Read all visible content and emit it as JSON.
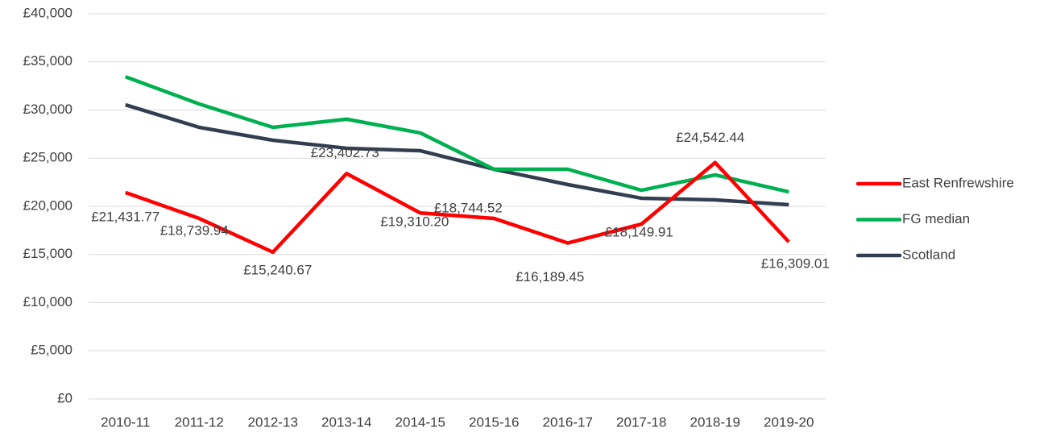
{
  "chart_data": {
    "type": "line",
    "categories": [
      "2010-11",
      "2011-12",
      "2012-13",
      "2013-14",
      "2014-15",
      "2015-16",
      "2016-17",
      "2017-18",
      "2018-19",
      "2019-20"
    ],
    "series": [
      {
        "name": "East Renfrewshire",
        "color": "#ff0000",
        "values": [
          21431.77,
          18739.94,
          15240.67,
          23402.73,
          19310.2,
          18744.52,
          16189.45,
          18149.91,
          24542.44,
          16309.01
        ],
        "value_labels": [
          "£21,431.77",
          "£18,739.94",
          "£15,240.67",
          "£23,402.73",
          "£19,310.20",
          "£18,744.52",
          "£16,189.45",
          "£18,149.91",
          "£24,542.44",
          "£16,309.01"
        ]
      },
      {
        "name": "FG median",
        "color": "#00b050",
        "values": [
          33450,
          30630,
          28200,
          29050,
          27620,
          23850,
          23850,
          21670,
          23260,
          21500
        ]
      },
      {
        "name": "Scotland",
        "color": "#323e4f",
        "values": [
          30540,
          28200,
          26860,
          26030,
          25770,
          23850,
          22260,
          20840,
          20670,
          20170
        ]
      }
    ],
    "ylim": [
      0,
      40000
    ],
    "yticks": [
      {
        "value": 0,
        "label": "£0"
      },
      {
        "value": 5000,
        "label": "£5,000"
      },
      {
        "value": 10000,
        "label": "£10,000"
      },
      {
        "value": 15000,
        "label": "£15,000"
      },
      {
        "value": 20000,
        "label": "£20,000"
      },
      {
        "value": 25000,
        "label": "£25,000"
      },
      {
        "value": 30000,
        "label": "£30,000"
      },
      {
        "value": 35000,
        "label": "£35,000"
      },
      {
        "value": 40000,
        "label": "£40,000"
      }
    ],
    "grid": true,
    "legend": "right"
  }
}
